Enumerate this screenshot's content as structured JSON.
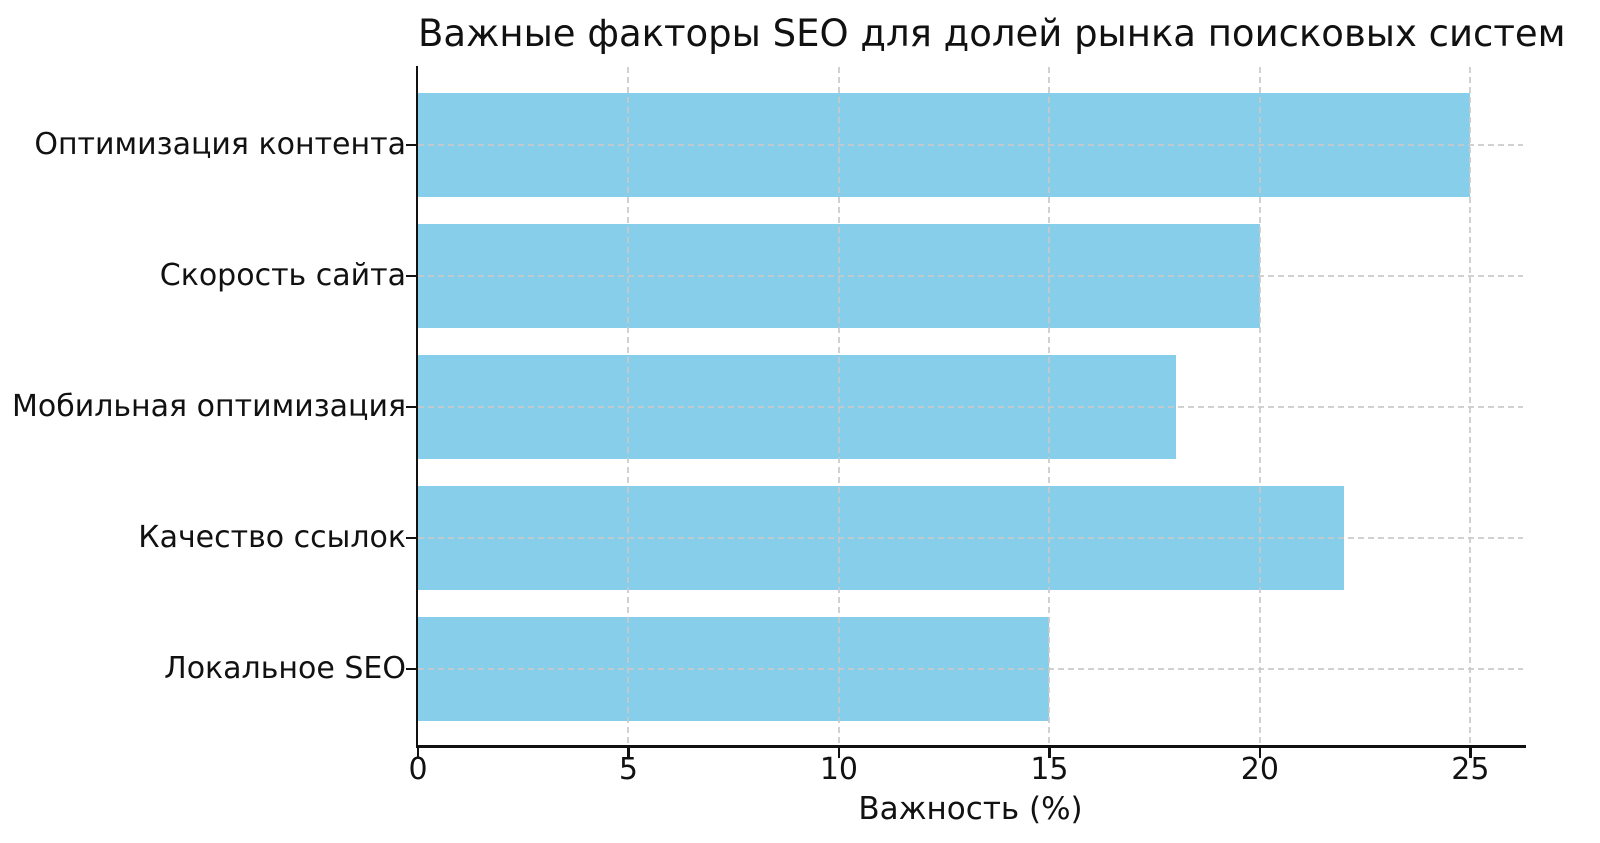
{
  "chart_data": {
    "type": "bar",
    "orientation": "horizontal",
    "title": "Важные факторы SEO для долей рынка поисковых систем",
    "xlabel": "Важность (%)",
    "ylabel": "",
    "categories": [
      "Оптимизация контента",
      "Скорость сайта",
      "Мобильная оптимизация",
      "Качество ссылок",
      "Локальное SEO"
    ],
    "values": [
      25,
      20,
      18,
      22,
      15
    ],
    "xticks": [
      0,
      5,
      10,
      15,
      20,
      25
    ],
    "xlim": [
      0,
      26.25
    ],
    "grid": "dashed",
    "grid_color": "#c9c9c9",
    "bar_color": "#87CEEB",
    "axis_color": "#111111",
    "background_color": "#ffffff",
    "legend_position": "none"
  }
}
